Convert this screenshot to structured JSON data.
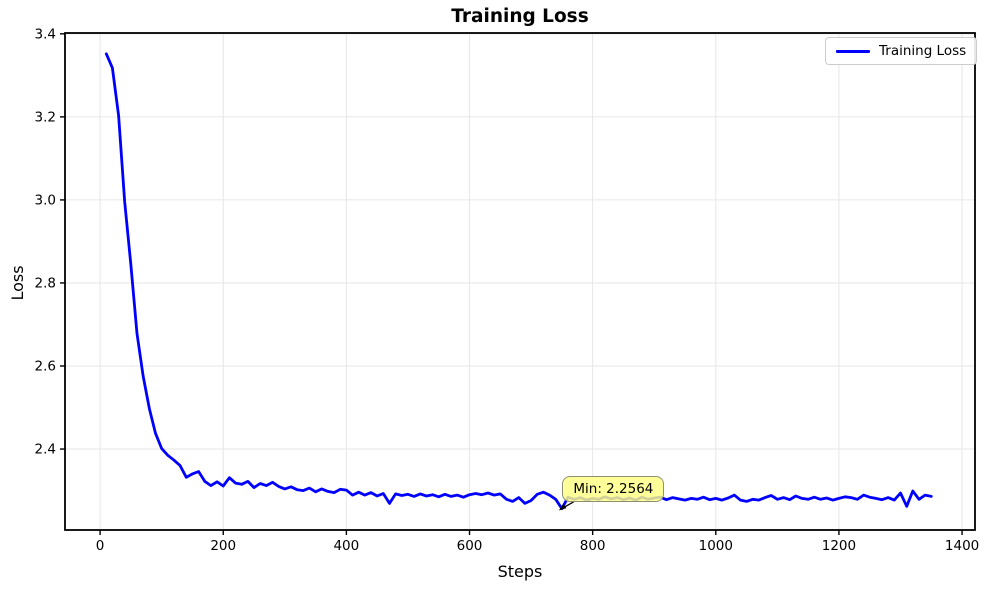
{
  "chart_data": {
    "type": "line",
    "title": "Training Loss",
    "xlabel": "Steps",
    "ylabel": "Loss",
    "xlim": [
      -57,
      1421
    ],
    "ylim": [
      2.205,
      3.402
    ],
    "x_ticks": [
      0,
      200,
      400,
      600,
      800,
      1000,
      1200,
      1400
    ],
    "x_tick_labels": [
      "0",
      "200",
      "400",
      "600",
      "800",
      "1000",
      "1200",
      "1400"
    ],
    "y_ticks": [
      2.4,
      2.6,
      2.8,
      3.0,
      3.2,
      3.4
    ],
    "y_tick_labels": [
      "2.4",
      "2.6",
      "2.8",
      "3.0",
      "3.2",
      "3.4"
    ],
    "grid": true,
    "grid_color": "#e6e6e6",
    "spine_color": "#000000",
    "legend": {
      "position": "upper-right",
      "entries": [
        {
          "label": "Training Loss",
          "color": "#0000ff"
        }
      ]
    },
    "annotation": {
      "text": "Min: 2.2564",
      "x": 750,
      "y": 2.2564,
      "box_color": "#ffff82",
      "border_color": "#8f8f74",
      "arrow_color": "#000000"
    },
    "series": [
      {
        "name": "Training Loss",
        "color": "#0000ff",
        "line_width": 2.8,
        "x": [
          10,
          20,
          30,
          40,
          50,
          60,
          70,
          80,
          90,
          100,
          110,
          120,
          130,
          140,
          150,
          160,
          170,
          180,
          190,
          200,
          210,
          220,
          230,
          240,
          250,
          260,
          270,
          280,
          290,
          300,
          310,
          320,
          330,
          340,
          350,
          360,
          370,
          380,
          390,
          400,
          410,
          420,
          430,
          440,
          450,
          460,
          470,
          480,
          490,
          500,
          510,
          520,
          530,
          540,
          550,
          560,
          570,
          580,
          590,
          600,
          610,
          620,
          630,
          640,
          650,
          660,
          670,
          680,
          690,
          700,
          710,
          720,
          730,
          740,
          750,
          760,
          770,
          780,
          790,
          800,
          810,
          820,
          830,
          840,
          850,
          860,
          870,
          880,
          890,
          900,
          910,
          920,
          930,
          940,
          950,
          960,
          970,
          980,
          990,
          1000,
          1010,
          1020,
          1030,
          1040,
          1050,
          1060,
          1070,
          1080,
          1090,
          1100,
          1110,
          1120,
          1130,
          1140,
          1150,
          1160,
          1170,
          1180,
          1190,
          1200,
          1210,
          1220,
          1230,
          1240,
          1250,
          1260,
          1270,
          1280,
          1290,
          1300,
          1310,
          1320,
          1330,
          1340,
          1350
        ],
        "y": [
          3.352,
          3.318,
          3.203,
          2.995,
          2.843,
          2.678,
          2.575,
          2.497,
          2.438,
          2.401,
          2.385,
          2.373,
          2.36,
          2.332,
          2.34,
          2.346,
          2.322,
          2.312,
          2.321,
          2.311,
          2.331,
          2.318,
          2.315,
          2.322,
          2.307,
          2.317,
          2.312,
          2.32,
          2.31,
          2.304,
          2.309,
          2.302,
          2.3,
          2.306,
          2.297,
          2.304,
          2.298,
          2.295,
          2.303,
          2.301,
          2.289,
          2.296,
          2.289,
          2.295,
          2.287,
          2.293,
          2.269,
          2.292,
          2.288,
          2.291,
          2.286,
          2.292,
          2.287,
          2.29,
          2.285,
          2.291,
          2.286,
          2.289,
          2.284,
          2.29,
          2.293,
          2.29,
          2.294,
          2.289,
          2.292,
          2.279,
          2.274,
          2.283,
          2.269,
          2.276,
          2.291,
          2.296,
          2.289,
          2.279,
          2.2564,
          2.284,
          2.279,
          2.283,
          2.277,
          2.281,
          2.279,
          2.285,
          2.28,
          2.283,
          2.278,
          2.282,
          2.277,
          2.284,
          2.279,
          2.282,
          2.284,
          2.278,
          2.283,
          2.28,
          2.277,
          2.281,
          2.279,
          2.284,
          2.278,
          2.281,
          2.277,
          2.282,
          2.289,
          2.277,
          2.274,
          2.279,
          2.277,
          2.283,
          2.288,
          2.279,
          2.283,
          2.278,
          2.287,
          2.281,
          2.279,
          2.284,
          2.279,
          2.282,
          2.277,
          2.281,
          2.285,
          2.283,
          2.279,
          2.289,
          2.284,
          2.281,
          2.278,
          2.283,
          2.277,
          2.294,
          2.262,
          2.299,
          2.279,
          2.289,
          2.286
        ]
      }
    ]
  }
}
